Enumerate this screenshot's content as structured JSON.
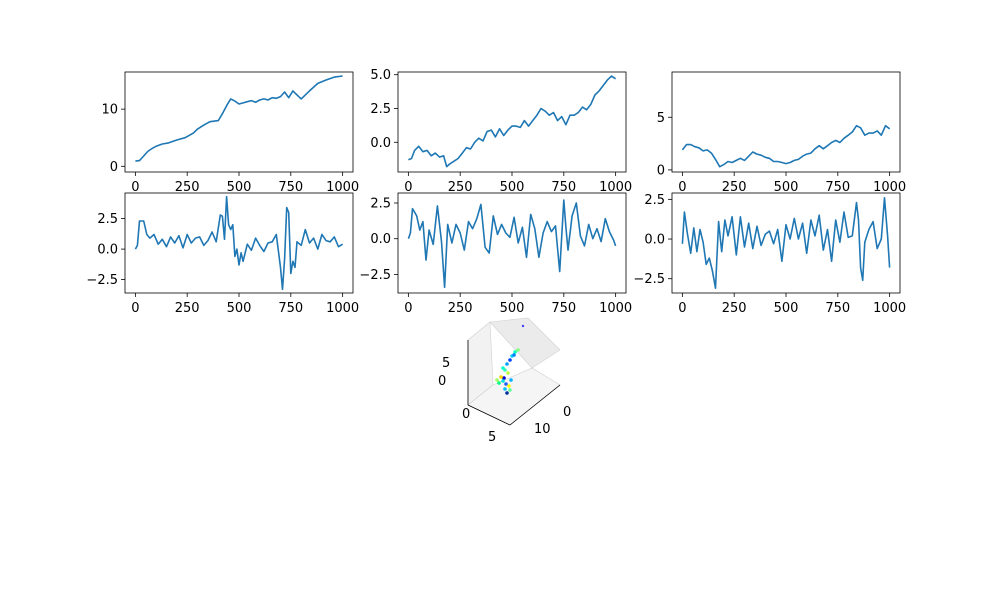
{
  "line_color": "#1f77b4",
  "chart_data": [
    {
      "type": "line",
      "name": "top-left",
      "x_ticks": [
        0,
        250,
        500,
        750,
        1000
      ],
      "xlim": [
        -50,
        1050
      ],
      "y_ticks": [
        0,
        10
      ],
      "ylim": [
        -1,
        16.5
      ],
      "x": [
        0,
        20,
        40,
        60,
        80,
        100,
        130,
        160,
        200,
        240,
        280,
        300,
        330,
        360,
        400,
        420,
        440,
        460,
        480,
        500,
        520,
        540,
        560,
        580,
        600,
        620,
        640,
        660,
        680,
        700,
        720,
        740,
        760,
        780,
        800,
        840,
        880,
        920,
        960,
        1000
      ],
      "y": [
        0.9,
        1.0,
        1.8,
        2.6,
        3.1,
        3.5,
        3.9,
        4.1,
        4.6,
        5.0,
        5.8,
        6.5,
        7.2,
        7.8,
        8.0,
        9.2,
        10.6,
        11.8,
        11.4,
        10.9,
        11.1,
        11.3,
        11.5,
        11.2,
        11.6,
        11.8,
        11.6,
        12.0,
        11.9,
        12.2,
        13.0,
        12.0,
        13.2,
        12.5,
        11.8,
        13.2,
        14.5,
        15.1,
        15.6,
        15.8
      ]
    },
    {
      "type": "line",
      "name": "top-middle",
      "x_ticks": [
        0,
        250,
        500,
        750,
        1000
      ],
      "xlim": [
        -50,
        1050
      ],
      "y_ticks": [
        0.0,
        2.5,
        5.0
      ],
      "y_tick_labels": [
        "0.0",
        "2.5",
        "5.0"
      ],
      "ylim": [
        -2.2,
        5.2
      ],
      "x": [
        0,
        15,
        30,
        50,
        70,
        90,
        110,
        130,
        150,
        170,
        185,
        200,
        220,
        240,
        260,
        280,
        300,
        320,
        340,
        360,
        380,
        400,
        420,
        440,
        460,
        480,
        500,
        520,
        540,
        560,
        580,
        600,
        620,
        640,
        660,
        680,
        700,
        720,
        740,
        760,
        780,
        800,
        820,
        840,
        860,
        880,
        900,
        920,
        940,
        960,
        980,
        1000
      ],
      "y": [
        -1.3,
        -1.2,
        -0.6,
        -0.3,
        -0.7,
        -0.6,
        -1.0,
        -0.8,
        -1.1,
        -1.0,
        -1.8,
        -1.6,
        -1.4,
        -1.2,
        -0.8,
        -0.4,
        -0.5,
        0.0,
        0.3,
        0.1,
        0.8,
        0.9,
        0.4,
        1.0,
        0.5,
        0.9,
        1.2,
        1.2,
        1.1,
        1.6,
        1.2,
        1.6,
        2.0,
        2.5,
        2.3,
        2.0,
        2.2,
        1.6,
        1.9,
        1.3,
        2.0,
        2.0,
        2.2,
        2.6,
        2.4,
        2.8,
        3.5,
        3.8,
        4.2,
        4.6,
        4.9,
        4.7
      ]
    },
    {
      "type": "line",
      "name": "top-right",
      "x_ticks": [
        0,
        250,
        500,
        750,
        1000
      ],
      "xlim": [
        -50,
        1050
      ],
      "y_ticks": [
        0,
        5
      ],
      "ylim": [
        -0.2,
        9.3
      ],
      "x": [
        0,
        20,
        40,
        60,
        80,
        100,
        120,
        140,
        160,
        180,
        200,
        220,
        240,
        260,
        280,
        300,
        320,
        340,
        360,
        380,
        400,
        420,
        440,
        460,
        480,
        500,
        520,
        540,
        560,
        580,
        600,
        620,
        640,
        660,
        680,
        700,
        720,
        740,
        760,
        780,
        800,
        820,
        840,
        860,
        880,
        900,
        920,
        940,
        960,
        980,
        1000
      ],
      "y": [
        1.9,
        2.4,
        2.4,
        2.2,
        2.1,
        1.8,
        1.9,
        1.6,
        1.0,
        0.3,
        0.5,
        0.8,
        0.7,
        0.9,
        1.1,
        0.9,
        1.3,
        1.7,
        1.5,
        1.4,
        1.2,
        1.1,
        0.8,
        0.8,
        0.7,
        0.6,
        0.7,
        0.9,
        1.0,
        1.3,
        1.5,
        1.6,
        2.0,
        2.3,
        2.0,
        2.3,
        2.6,
        2.8,
        2.6,
        3.0,
        3.3,
        3.6,
        4.2,
        4.0,
        3.3,
        3.5,
        3.5,
        3.7,
        3.3,
        4.2,
        3.9
      ]
    },
    {
      "type": "line",
      "name": "middle-left",
      "x_ticks": [
        0,
        250,
        500,
        750,
        1000
      ],
      "xlim": [
        -50,
        1050
      ],
      "y_ticks": [
        -2.5,
        0.0,
        2.5
      ],
      "y_tick_labels": [
        "−2.5",
        "0.0",
        "2.5"
      ],
      "ylim": [
        -3.6,
        4.6
      ],
      "x": [
        0,
        10,
        20,
        40,
        55,
        70,
        90,
        110,
        130,
        150,
        170,
        190,
        210,
        230,
        250,
        270,
        290,
        310,
        330,
        350,
        370,
        390,
        410,
        420,
        430,
        440,
        450,
        460,
        470,
        480,
        490,
        500,
        510,
        520,
        540,
        560,
        580,
        600,
        620,
        640,
        660,
        680,
        700,
        710,
        720,
        730,
        740,
        750,
        760,
        770,
        780,
        800,
        820,
        840,
        860,
        880,
        900,
        920,
        940,
        960,
        980,
        1000
      ],
      "y": [
        0.0,
        0.3,
        2.3,
        2.3,
        1.2,
        0.9,
        1.2,
        0.4,
        0.8,
        0.2,
        1.0,
        0.5,
        1.1,
        0.1,
        1.2,
        0.5,
        0.9,
        1.0,
        0.3,
        0.7,
        1.4,
        0.6,
        2.8,
        2.7,
        0.8,
        4.3,
        2.0,
        1.6,
        2.0,
        -0.6,
        0.0,
        -1.3,
        -0.3,
        -1.0,
        0.4,
        -0.1,
        0.9,
        0.3,
        -0.2,
        0.5,
        0.6,
        1.2,
        -1.5,
        -3.3,
        -0.8,
        3.4,
        3.0,
        -2.0,
        -1.0,
        -1.5,
        0.6,
        0.3,
        1.6,
        0.5,
        0.9,
        0.0,
        1.2,
        0.7,
        0.6,
        1.0,
        0.2,
        0.4
      ]
    },
    {
      "type": "line",
      "name": "middle-middle",
      "x_ticks": [
        0,
        250,
        500,
        750,
        1000
      ],
      "xlim": [
        -50,
        1050
      ],
      "y_ticks": [
        -2.5,
        0.0,
        2.5
      ],
      "y_tick_labels": [
        "−2.5",
        "0.0",
        "2.5"
      ],
      "ylim": [
        -3.8,
        3.2
      ],
      "x": [
        0,
        10,
        20,
        40,
        55,
        70,
        85,
        100,
        120,
        140,
        160,
        175,
        190,
        210,
        230,
        250,
        270,
        290,
        310,
        330,
        350,
        370,
        390,
        410,
        430,
        450,
        470,
        490,
        510,
        530,
        550,
        570,
        590,
        610,
        630,
        650,
        670,
        690,
        710,
        730,
        750,
        760,
        770,
        790,
        810,
        830,
        850,
        870,
        890,
        910,
        930,
        950,
        970,
        990,
        1000
      ],
      "y": [
        0.0,
        0.4,
        2.1,
        1.6,
        0.6,
        1.2,
        -1.5,
        0.6,
        -0.4,
        2.3,
        -0.2,
        -3.4,
        1.0,
        -0.3,
        1.0,
        0.4,
        -0.8,
        1.2,
        0.7,
        1.4,
        2.4,
        -0.6,
        -1.0,
        1.6,
        0.3,
        1.0,
        0.4,
        0.1,
        1.5,
        -0.3,
        0.8,
        -1.3,
        1.7,
        0.7,
        -1.3,
        0.4,
        1.2,
        0.5,
        0.9,
        -2.3,
        2.7,
        0.8,
        -0.8,
        1.6,
        2.5,
        0.2,
        -0.5,
        1.0,
        0.0,
        0.7,
        -0.2,
        1.4,
        0.5,
        -0.1,
        -0.5
      ]
    },
    {
      "type": "line",
      "name": "middle-right",
      "x_ticks": [
        0,
        250,
        500,
        750,
        1000
      ],
      "xlim": [
        -50,
        1050
      ],
      "y_ticks": [
        -2.5,
        0.0,
        2.5
      ],
      "y_tick_labels": [
        "−2.5",
        "0.0",
        "2.5"
      ],
      "ylim": [
        -3.4,
        2.9
      ],
      "x": [
        0,
        10,
        25,
        40,
        55,
        70,
        85,
        100,
        115,
        130,
        145,
        160,
        175,
        190,
        205,
        220,
        240,
        260,
        280,
        300,
        320,
        340,
        360,
        380,
        400,
        420,
        440,
        460,
        480,
        500,
        520,
        540,
        560,
        580,
        600,
        620,
        640,
        660,
        680,
        700,
        720,
        740,
        760,
        780,
        800,
        820,
        840,
        850,
        860,
        870,
        880,
        900,
        920,
        940,
        960,
        975,
        990,
        1000
      ],
      "y": [
        -0.3,
        1.7,
        0.3,
        -0.9,
        0.7,
        -0.8,
        0.6,
        -0.2,
        -1.6,
        -1.2,
        -2.0,
        -3.1,
        1.1,
        -0.8,
        1.2,
        0.2,
        1.4,
        -1.0,
        1.4,
        -0.5,
        1.0,
        -0.6,
        0.8,
        -0.4,
        0.3,
        0.5,
        -0.3,
        0.6,
        -1.4,
        0.9,
        0.0,
        1.3,
        0.0,
        1.0,
        -0.9,
        1.2,
        0.2,
        1.5,
        -0.7,
        0.6,
        -1.4,
        1.2,
        -0.2,
        1.7,
        0.1,
        0.2,
        2.3,
        1.2,
        -1.8,
        -2.6,
        -0.2,
        0.6,
        1.1,
        -0.6,
        0.0,
        2.6,
        0.2,
        -1.8
      ]
    },
    {
      "type": "scatter3d",
      "name": "bottom-3d",
      "z_ticks": [
        0,
        5
      ],
      "y_axis_ticks": [
        0,
        5
      ],
      "x_axis_ticks": [
        0,
        10
      ],
      "points": [
        {
          "c": "#00d0ff"
        },
        {
          "c": "#00ffbf"
        },
        {
          "c": "#0040ff"
        },
        {
          "c": "#80ff80"
        },
        {
          "c": "#00a0ff"
        },
        {
          "c": "#40ffb0"
        },
        {
          "c": "#0000cc"
        },
        {
          "c": "#c0ff40"
        },
        {
          "c": "#00e0e0"
        },
        {
          "c": "#ffd000"
        },
        {
          "c": "#00ff80"
        },
        {
          "c": "#2060ff"
        },
        {
          "c": "#ffff00"
        },
        {
          "c": "#00c0ff"
        },
        {
          "c": "#0030a0"
        },
        {
          "c": "#60ffa0"
        },
        {
          "c": "#00ffd0"
        },
        {
          "c": "#0080ff"
        },
        {
          "c": "#a0ff60"
        },
        {
          "c": "#00b0ff"
        }
      ]
    }
  ],
  "tick_labels_3d": {
    "z": [
      "5",
      "0"
    ],
    "y": [
      "0",
      "5"
    ],
    "x": [
      "0",
      "10"
    ]
  }
}
